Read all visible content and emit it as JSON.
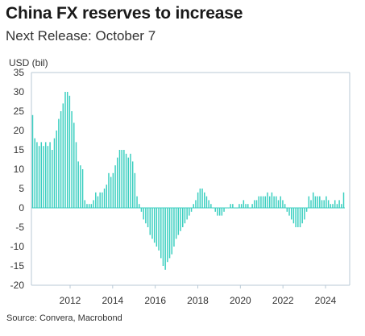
{
  "title": "China FX reserves to increase",
  "subtitle": "Next Release: October 7",
  "source": "Source: Convera, Macrobond",
  "colors": {
    "bar": "#3bcfc0",
    "axis": "#b9c9d6",
    "text": "#333333"
  },
  "chart_data": {
    "type": "bar",
    "ylabel": "USD (bil)",
    "ylim": [
      -20,
      35
    ],
    "yticks": [
      "35",
      "30",
      "25",
      "20",
      "15",
      "10",
      "5",
      "0",
      "-5",
      "-10",
      "-15",
      "-20"
    ],
    "xticks": [
      "2012",
      "2014",
      "2016",
      "2018",
      "2020",
      "2022",
      "2024"
    ],
    "grid": false,
    "legend": "none",
    "values": [
      24,
      18,
      17,
      16,
      17,
      16,
      17,
      16,
      17,
      15,
      18,
      20,
      23,
      25,
      27,
      30,
      30,
      29,
      25,
      22,
      17,
      12,
      11,
      10,
      2,
      1,
      1,
      1,
      2,
      4,
      3,
      4,
      4,
      5,
      6,
      9,
      8,
      9,
      11,
      13,
      15,
      15,
      15,
      14,
      13,
      14,
      12,
      9,
      3,
      1,
      -1,
      -3,
      -4,
      -5,
      -7,
      -8,
      -9,
      -10,
      -11,
      -13,
      -15,
      -16,
      -14,
      -13,
      -12,
      -10,
      -8,
      -7,
      -6,
      -5,
      -4,
      -3,
      -2,
      -1,
      1,
      2,
      4,
      5,
      5,
      4,
      3,
      2,
      1,
      0,
      -1,
      -2,
      -2,
      -2,
      -1,
      0,
      0,
      1,
      1,
      0,
      0,
      1,
      1,
      2,
      1,
      1,
      0,
      1,
      2,
      2,
      3,
      3,
      3,
      3,
      4,
      3,
      4,
      3,
      3,
      2,
      3,
      2,
      1,
      -1,
      -2,
      -3,
      -4,
      -5,
      -5,
      -5,
      -4,
      -3,
      -1,
      3,
      2,
      4,
      3,
      3,
      3,
      2,
      2,
      3,
      2,
      1,
      1,
      2,
      1,
      2,
      1,
      4
    ]
  }
}
